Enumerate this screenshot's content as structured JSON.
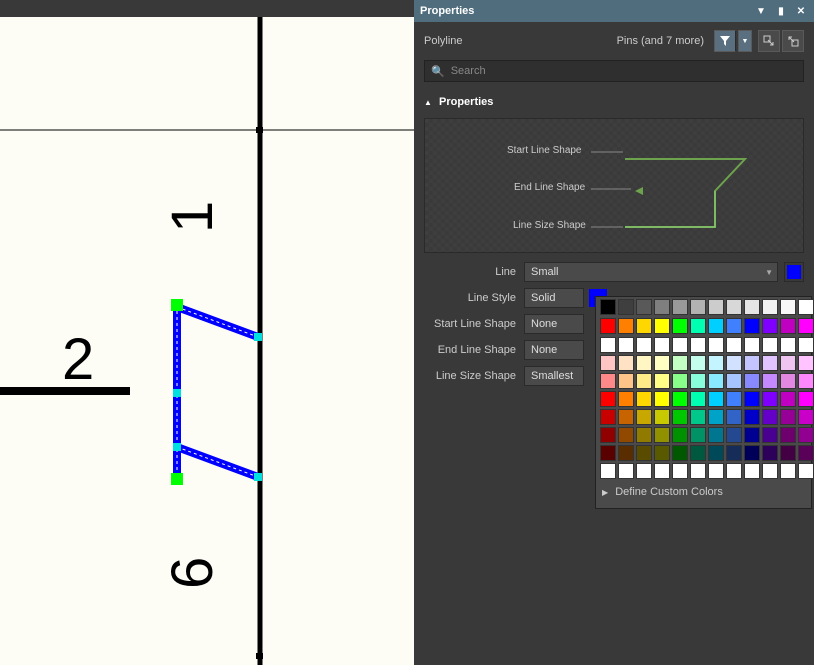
{
  "panel": {
    "title": "Properties",
    "object_type": "Polyline",
    "pins_text": "Pins (and 7 more)",
    "search_placeholder": "Search",
    "section": "Properties"
  },
  "preview": {
    "start_label": "Start Line Shape",
    "end_label": "End Line Shape",
    "size_label": "Line Size Shape",
    "line_color": "#6da34d"
  },
  "props": {
    "line_label": "Line",
    "line_value": "Small",
    "style_label": "Line Style",
    "style_value": "Solid",
    "start_label": "Start Line Shape",
    "start_value": "None",
    "end_label": "End Line Shape",
    "end_value": "None",
    "size_label": "Line Size Shape",
    "size_value": "Smallest",
    "current_color": "#0000ff"
  },
  "color_picker": {
    "greys": [
      "#000000",
      "#3f3f3f",
      "#595959",
      "#7f7f7f",
      "#999999",
      "#b2b2b2",
      "#cccccc",
      "#d8d8d8",
      "#e5e5e5",
      "#f2f2f2",
      "#f8f8f8",
      "#ffffff"
    ],
    "hues": [
      "#ff0000",
      "#ff8000",
      "#ffd700",
      "#ffff00",
      "#00ff00",
      "#00ffb0",
      "#00d0ff",
      "#4080ff",
      "#0000ff",
      "#8000ff",
      "#c000c0",
      "#ff00ff"
    ],
    "selected": "#0000ff",
    "whites": [
      "#ffffff",
      "#ffffff",
      "#ffffff",
      "#ffffff",
      "#ffffff",
      "#ffffff",
      "#ffffff",
      "#ffffff",
      "#ffffff",
      "#ffffff",
      "#ffffff",
      "#ffffff"
    ],
    "custom_label": "Define Custom Colors"
  },
  "canvas": {
    "bg": "#fdfdf5",
    "pin_labels": [
      "1",
      "2",
      "6"
    ],
    "poly_color": "#0000ff",
    "handle_colors": {
      "end": "#00ff00",
      "mid": "#00e0e0"
    }
  }
}
